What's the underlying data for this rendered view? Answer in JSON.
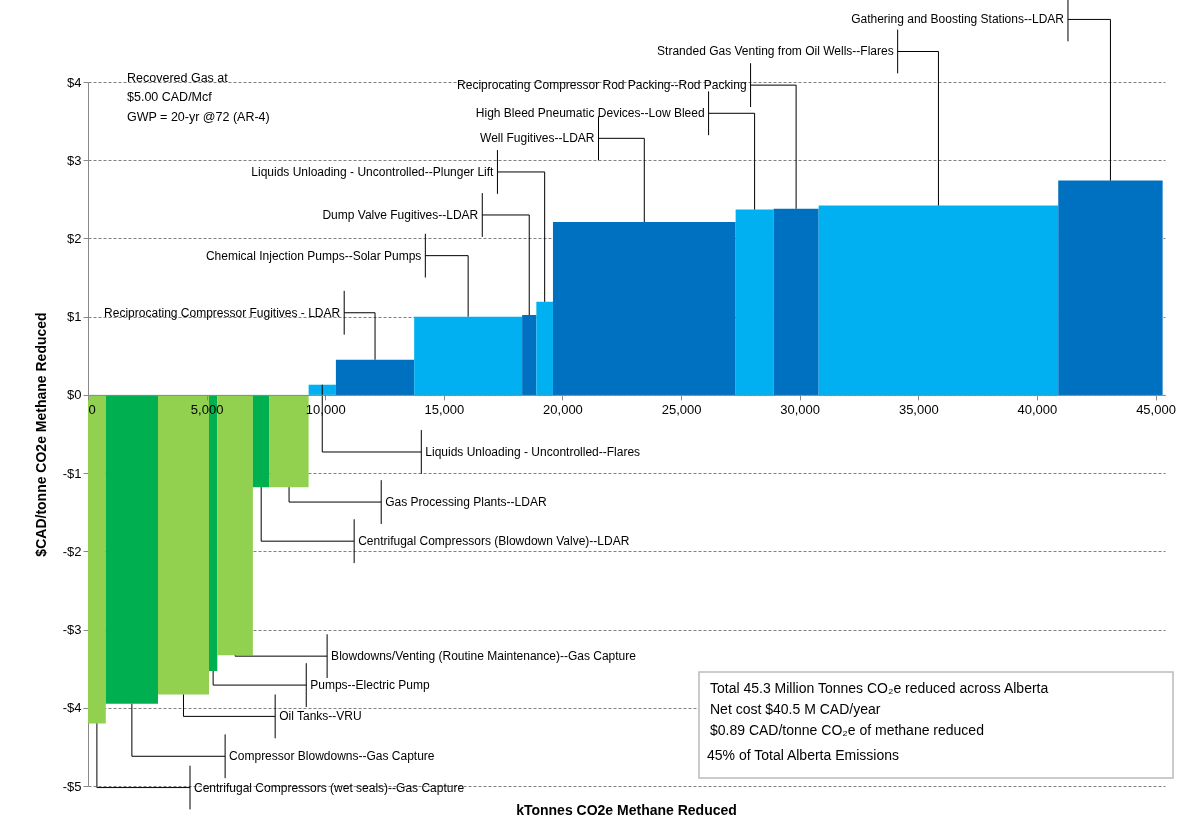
{
  "chart_data": {
    "type": "histogram",
    "xlabel": "kTonnes CO2e Methane Reduced",
    "ylabel": "$CAD/tonne CO2e Methane Reduced",
    "bins": [
      0,
      750,
      2950,
      5100,
      5450,
      6950,
      7650,
      9300,
      10450,
      13750,
      18300,
      18900,
      19600,
      27300,
      28900,
      30800,
      40900,
      45300
    ],
    "values": [
      -4.2,
      -3.95,
      -3.83,
      -3.53,
      -3.33,
      -1.18,
      -1.18,
      0.13,
      0.45,
      1.0,
      1.02,
      1.19,
      2.21,
      2.37,
      2.38,
      2.42,
      2.74
    ],
    "colors": [
      "#92d050",
      "#00b050",
      "#92d050",
      "#00b050",
      "#92d050",
      "#00b050",
      "#92d050",
      "#00b0f0",
      "#0070c0",
      "#00b0f0",
      "#0070c0",
      "#00b0f0",
      "#0070c0",
      "#00b0f0",
      "#0070c0",
      "#00b0f0",
      "#0070c0"
    ],
    "xlim": [
      0,
      45400
    ],
    "xticks": [
      0,
      {
        "value": 5000,
        "label": "5,000"
      },
      {
        "value": 10000,
        "label": "10,000"
      },
      {
        "value": 15000,
        "label": "15,000"
      },
      {
        "value": 20000,
        "label": "20,000"
      },
      {
        "value": 25000,
        "label": "25,000"
      },
      {
        "value": 30000,
        "label": "30,000"
      },
      {
        "value": 35000,
        "label": "35,000"
      },
      {
        "value": 40000,
        "label": "40,000"
      },
      {
        "value": 45000,
        "label": "45,000"
      }
    ],
    "ylim": [
      -5,
      4
    ],
    "yticks": [
      {
        "value": -5,
        "label": "-$5"
      },
      {
        "value": -4,
        "label": "-$4"
      },
      {
        "value": -3,
        "label": "-$3"
      },
      {
        "value": -2,
        "label": "-$2"
      },
      {
        "value": -1,
        "label": "-$1"
      },
      {
        "value": 0,
        "label": "$0"
      },
      {
        "value": 1,
        "label": "$1"
      },
      {
        "value": 2,
        "label": "$2"
      },
      {
        "value": 3,
        "label": "$3"
      },
      {
        "value": 4,
        "label": "$4"
      }
    ],
    "grid": "y",
    "annotations": [
      {
        "text": "Centrifugal Compressors (wet seals)--Gas Capture",
        "x": 375,
        "y": -4.2
      },
      {
        "text": "Compressor Blowdowns--Gas Capture",
        "x": 1850,
        "y": -3.95
      },
      {
        "text": "Oil Tanks--VRU",
        "x": 4025,
        "y": -3.83
      },
      {
        "text": "Pumps--Electric Pump",
        "x": 5275,
        "y": -3.53
      },
      {
        "text": "Blowdowns/Venting (Routine Maintenance)--Gas Capture",
        "x": 6200,
        "y": -3.33
      },
      {
        "text": "Centrifugal Compressors (Blowdown Valve)--LDAR",
        "x": 7300,
        "y": -1.18
      },
      {
        "text": "Gas Processing Plants--LDAR",
        "x": 8475,
        "y": -1.18
      },
      {
        "text": "Liquids Unloading - Uncontrolled--Flares",
        "x": 9875,
        "y": 0.13
      },
      {
        "text": "Reciprocating Compressor Fugitives - LDAR",
        "x": 12100,
        "y": 0.45
      },
      {
        "text": "Chemical Injection Pumps--Solar Pumps",
        "x": 16025,
        "y": 1.0
      },
      {
        "text": "Dump Valve Fugitives--LDAR",
        "x": 18600,
        "y": 1.02
      },
      {
        "text": "Liquids Unloading - Uncontrolled--Plunger Lift",
        "x": 19250,
        "y": 1.19
      },
      {
        "text": "Well Fugitives--LDAR",
        "x": 23450,
        "y": 2.21
      },
      {
        "text": "High Bleed Pneumatic Devices--Low Bleed",
        "x": 28100,
        "y": 2.37
      },
      {
        "text": "Reciprocating Compressor Rod Packing--Rod Packing",
        "x": 29850,
        "y": 2.38
      },
      {
        "text": "Stranded Gas Venting from Oil Wells--Flares",
        "x": 35850,
        "y": 2.42
      },
      {
        "text": "Gathering and Boosting Stations--LDAR",
        "x": 43100,
        "y": 2.74
      },
      "Recovered Gas at",
      "$5.00 CAD/Mcf",
      "GWP = 20-yr @72 (AR-4)",
      "Total 45.3 Million Tonnes CO₂e reduced across Alberta",
      "Net cost $40.5 M CAD/year",
      "$0.89 CAD/tonne CO₂e of methane reduced",
      "45% of Total Alberta Emissions"
    ]
  }
}
